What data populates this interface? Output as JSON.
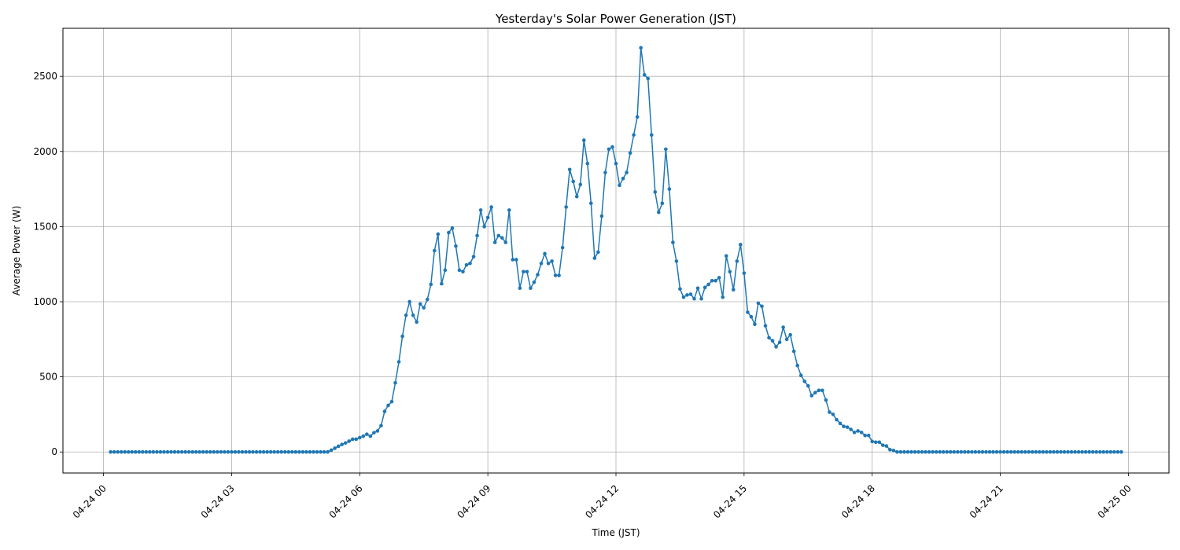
{
  "chart_data": {
    "type": "line",
    "title": "Yesterday's Solar Power Generation (JST)",
    "xlabel": "Time (JST)",
    "ylabel": "Average Power (W)",
    "grid": true,
    "marker": "dot",
    "color": "#1f77b4",
    "xlim": [
      "2024-04-23T23:03",
      "2024-04-25T00:57"
    ],
    "ylim": [
      -140,
      2820
    ],
    "x_ticks": [
      "04-24 00",
      "04-24 03",
      "04-24 06",
      "04-24 09",
      "04-24 12",
      "04-24 15",
      "04-24 18",
      "04-24 21",
      "04-25 00"
    ],
    "y_ticks": [
      0,
      500,
      1000,
      1500,
      2000,
      2500
    ],
    "series": [
      {
        "x_start": "2024-04-24T00:10",
        "interval_minutes": 5,
        "values": [
          0,
          0,
          0,
          0,
          0,
          0,
          0,
          0,
          0,
          0,
          0,
          0,
          0,
          0,
          0,
          0,
          0,
          0,
          0,
          0,
          0,
          0,
          0,
          0,
          0,
          0,
          0,
          0,
          0,
          0,
          0,
          0,
          0,
          0,
          0,
          0,
          0,
          0,
          0,
          0,
          0,
          0,
          0,
          0,
          0,
          0,
          0,
          0,
          0,
          0,
          0,
          0,
          0,
          0,
          0,
          0,
          0,
          0,
          0,
          0,
          0,
          0,
          12,
          25,
          38,
          50,
          60,
          72,
          85,
          85,
          95,
          105,
          118,
          105,
          128,
          140,
          175,
          270,
          310,
          335,
          460,
          600,
          770,
          910,
          1000,
          910,
          865,
          985,
          960,
          1015,
          1115,
          1340,
          1450,
          1120,
          1210,
          1460,
          1490,
          1370,
          1210,
          1200,
          1245,
          1255,
          1300,
          1440,
          1610,
          1500,
          1560,
          1630,
          1395,
          1440,
          1425,
          1395,
          1610,
          1280,
          1280,
          1090,
          1200,
          1200,
          1090,
          1130,
          1180,
          1255,
          1320,
          1255,
          1270,
          1175,
          1175,
          1360,
          1630,
          1880,
          1800,
          1700,
          1780,
          2075,
          1920,
          1655,
          1290,
          1330,
          1570,
          1860,
          2015,
          2030,
          1920,
          1775,
          1820,
          1860,
          1990,
          2110,
          2230,
          2690,
          2510,
          2485,
          2110,
          1730,
          1595,
          1655,
          2015,
          1750,
          1395,
          1270,
          1085,
          1030,
          1045,
          1050,
          1020,
          1090,
          1020,
          1095,
          1115,
          1140,
          1140,
          1160,
          1030,
          1305,
          1200,
          1080,
          1270,
          1380,
          1190,
          930,
          900,
          850,
          990,
          970,
          840,
          760,
          740,
          700,
          730,
          830,
          750,
          780,
          670,
          575,
          510,
          470,
          440,
          375,
          395,
          410,
          410,
          345,
          265,
          250,
          215,
          190,
          170,
          165,
          150,
          130,
          140,
          130,
          110,
          110,
          70,
          65,
          65,
          45,
          40,
          15,
          10,
          0,
          0,
          0,
          0,
          0,
          0,
          0,
          0,
          0,
          0,
          0,
          0,
          0,
          0,
          0,
          0,
          0,
          0,
          0,
          0,
          0,
          0,
          0,
          0,
          0,
          0,
          0,
          0,
          0,
          0,
          0,
          0,
          0,
          0,
          0,
          0,
          0,
          0,
          0,
          0,
          0,
          0,
          0,
          0,
          0,
          0,
          0,
          0,
          0,
          0,
          0,
          0,
          0,
          0,
          0,
          0,
          0,
          0,
          0,
          0,
          0,
          0,
          0,
          0
        ]
      }
    ]
  }
}
